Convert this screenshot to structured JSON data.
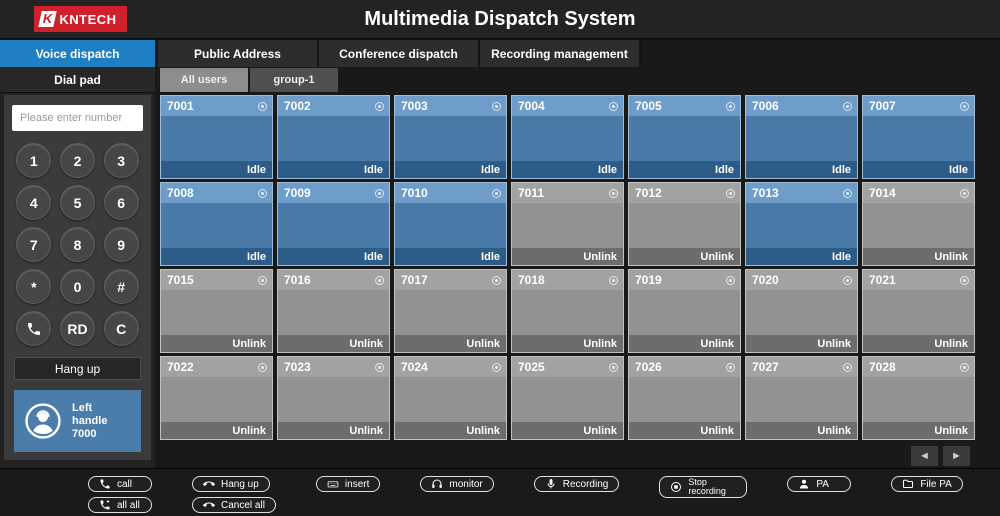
{
  "header": {
    "title": "Multimedia Dispatch System",
    "logo_text": "KNTECH"
  },
  "nav_tabs": [
    {
      "label": "Voice dispatch",
      "active": true
    },
    {
      "label": "Public Address",
      "active": false
    },
    {
      "label": "Conference dispatch",
      "active": false
    },
    {
      "label": "Recording management",
      "active": false
    }
  ],
  "sidebar": {
    "title": "Dial pad",
    "input_placeholder": "Please enter number",
    "input_value": "",
    "keys": [
      {
        "label": "1"
      },
      {
        "label": "2"
      },
      {
        "label": "3"
      },
      {
        "label": "4"
      },
      {
        "label": "5"
      },
      {
        "label": "6"
      },
      {
        "label": "7"
      },
      {
        "label": "8"
      },
      {
        "label": "9"
      },
      {
        "label": "*"
      },
      {
        "label": "0"
      },
      {
        "label": "#"
      },
      {
        "icon": "phone-icon"
      },
      {
        "label": "RD"
      },
      {
        "label": "C"
      }
    ],
    "hangup_label": "Hang up",
    "handle": {
      "lines": [
        "Left",
        "handle",
        "7000"
      ]
    }
  },
  "groups": [
    {
      "label": "All users",
      "active": true
    },
    {
      "label": "group-1",
      "active": false
    }
  ],
  "extensions": [
    {
      "number": "7001",
      "status": "Idle",
      "state": "idle"
    },
    {
      "number": "7002",
      "status": "Idle",
      "state": "idle"
    },
    {
      "number": "7003",
      "status": "Idle",
      "state": "idle"
    },
    {
      "number": "7004",
      "status": "Idle",
      "state": "idle"
    },
    {
      "number": "7005",
      "status": "Idle",
      "state": "idle"
    },
    {
      "number": "7006",
      "status": "Idle",
      "state": "idle"
    },
    {
      "number": "7007",
      "status": "Idle",
      "state": "idle"
    },
    {
      "number": "7008",
      "status": "Idle",
      "state": "idle"
    },
    {
      "number": "7009",
      "status": "Idle",
      "state": "idle"
    },
    {
      "number": "7010",
      "status": "Idle",
      "state": "idle"
    },
    {
      "number": "7011",
      "status": "Unlink",
      "state": "unlink"
    },
    {
      "number": "7012",
      "status": "Unlink",
      "state": "unlink"
    },
    {
      "number": "7013",
      "status": "Idle",
      "state": "idle"
    },
    {
      "number": "7014",
      "status": "Unlink",
      "state": "unlink"
    },
    {
      "number": "7015",
      "status": "Unlink",
      "state": "unlink"
    },
    {
      "number": "7016",
      "status": "Unlink",
      "state": "unlink"
    },
    {
      "number": "7017",
      "status": "Unlink",
      "state": "unlink"
    },
    {
      "number": "7018",
      "status": "Unlink",
      "state": "unlink"
    },
    {
      "number": "7019",
      "status": "Unlink",
      "state": "unlink"
    },
    {
      "number": "7020",
      "status": "Unlink",
      "state": "unlink"
    },
    {
      "number": "7021",
      "status": "Unlink",
      "state": "unlink"
    },
    {
      "number": "7022",
      "status": "Unlink",
      "state": "unlink"
    },
    {
      "number": "7023",
      "status": "Unlink",
      "state": "unlink"
    },
    {
      "number": "7024",
      "status": "Unlink",
      "state": "unlink"
    },
    {
      "number": "7025",
      "status": "Unlink",
      "state": "unlink"
    },
    {
      "number": "7026",
      "status": "Unlink",
      "state": "unlink"
    },
    {
      "number": "7027",
      "status": "Unlink",
      "state": "unlink"
    },
    {
      "number": "7028",
      "status": "Unlink",
      "state": "unlink"
    }
  ],
  "pagination": {
    "prev": "◄",
    "next": "►"
  },
  "toolbar": {
    "groups": [
      {
        "buttons": [
          {
            "label": "call",
            "icon": "call-icon"
          },
          {
            "label": "all all",
            "icon": "call-all-icon"
          }
        ]
      },
      {
        "buttons": [
          {
            "label": "Hang up",
            "icon": "hangup-icon"
          },
          {
            "label": "Cancel all",
            "icon": "cancel-all-icon"
          }
        ]
      },
      {
        "buttons": [
          {
            "label": "insert",
            "icon": "insert-icon"
          }
        ]
      },
      {
        "buttons": [
          {
            "label": "monitor",
            "icon": "monitor-icon"
          }
        ]
      },
      {
        "buttons": [
          {
            "label": "Recording",
            "icon": "recording-icon"
          }
        ]
      },
      {
        "buttons": [
          {
            "label": "Stop recording",
            "icon": "stop-icon",
            "twoline": true
          }
        ]
      },
      {
        "buttons": [
          {
            "label": "PA",
            "icon": "pa-icon"
          }
        ]
      },
      {
        "buttons": [
          {
            "label": "File PA",
            "icon": "file-pa-icon"
          }
        ]
      }
    ]
  },
  "colors": {
    "accent_blue": "#1e7fc2",
    "idle_card": "#4a7aa8",
    "unlink_card": "#929292",
    "logo_red": "#d0202c",
    "handle_panel": "#4b7dab"
  }
}
